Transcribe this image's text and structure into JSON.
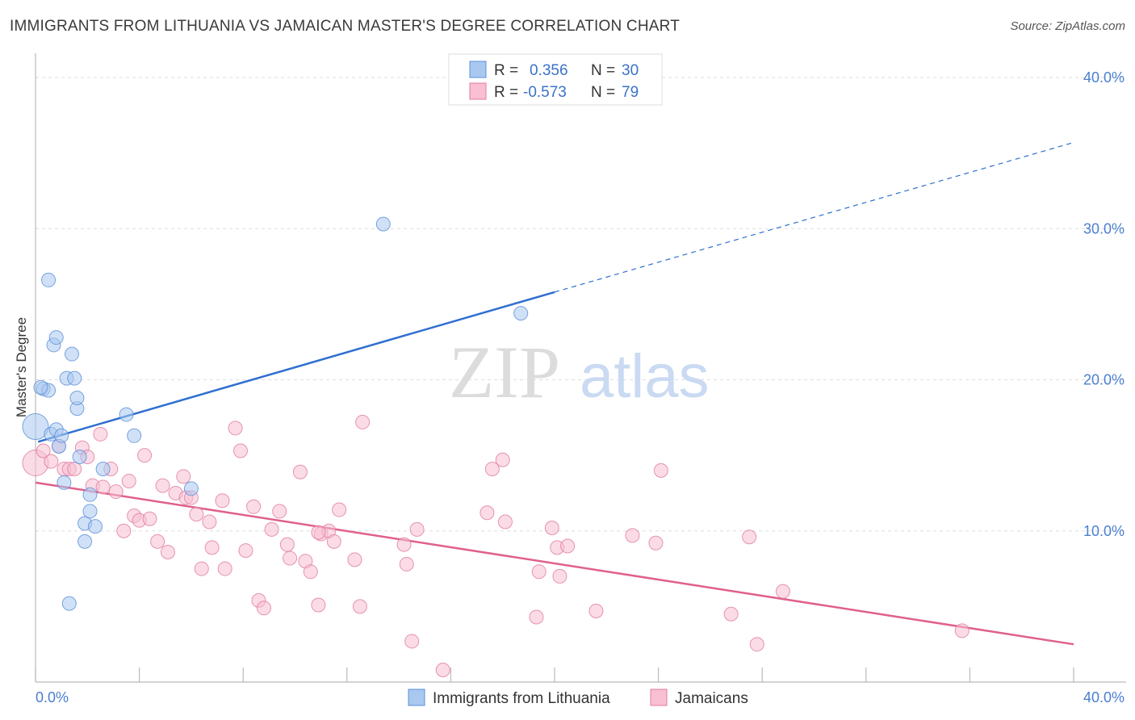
{
  "header": {
    "title": "IMMIGRANTS FROM LITHUANIA VS JAMAICAN MASTER'S DEGREE CORRELATION CHART",
    "source": "Source: ZipAtlas.com"
  },
  "watermark": {
    "zip": "ZIP",
    "atlas": "atlas"
  },
  "legend": {
    "rows": [
      {
        "r_label": "R =",
        "r_value": "0.356",
        "n_label": "N =",
        "n_value": "30",
        "color": "#a9c8f0",
        "stroke": "#5a8fd8"
      },
      {
        "r_label": "R =",
        "r_value": "-0.573",
        "n_label": "N =",
        "n_value": "79",
        "color": "#f8c0d2",
        "stroke": "#e07aa0"
      }
    ]
  },
  "chart_data": {
    "type": "scatter",
    "title": "IMMIGRANTS FROM LITHUANIA VS JAMAICAN MASTER'S DEGREE CORRELATION CHART",
    "xlabel": "",
    "ylabel": "Master's Degree",
    "xlim": [
      0,
      40
    ],
    "ylim": [
      0,
      40
    ],
    "x_tick_labels": [
      "0.0%",
      "40.0%"
    ],
    "y_tick_labels": [
      "10.0%",
      "20.0%",
      "30.0%",
      "40.0%"
    ],
    "y_ticks": [
      10,
      20,
      30,
      40
    ],
    "grid": true,
    "legend_placement": "top-center",
    "series": [
      {
        "name": "Immigrants from Lithuania",
        "color": "#a9c8f0",
        "stroke": "#5a8fd8",
        "trend_color": "#2f6fd0",
        "trend": {
          "x0": 0.1,
          "y0": 15.9,
          "x1": 20.0,
          "y1": 25.8,
          "dash_to_x": 40.0,
          "dash_to_y": 35.7
        },
        "points": [
          [
            0.0,
            16.9
          ],
          [
            0.3,
            19.4
          ],
          [
            0.5,
            19.3
          ],
          [
            0.5,
            26.6
          ],
          [
            0.6,
            16.4
          ],
          [
            0.7,
            22.3
          ],
          [
            0.8,
            22.8
          ],
          [
            0.8,
            16.7
          ],
          [
            0.9,
            15.6
          ],
          [
            1.0,
            16.3
          ],
          [
            1.1,
            13.2
          ],
          [
            1.2,
            20.1
          ],
          [
            1.4,
            21.7
          ],
          [
            1.5,
            20.1
          ],
          [
            1.6,
            18.1
          ],
          [
            1.6,
            18.8
          ],
          [
            1.7,
            14.9
          ],
          [
            1.9,
            10.5
          ],
          [
            1.9,
            9.3
          ],
          [
            2.1,
            12.4
          ],
          [
            2.1,
            11.3
          ],
          [
            2.3,
            10.3
          ],
          [
            2.6,
            14.1
          ],
          [
            3.5,
            17.7
          ],
          [
            3.8,
            16.3
          ],
          [
            6.0,
            12.8
          ],
          [
            13.4,
            30.3
          ],
          [
            18.7,
            24.4
          ],
          [
            1.3,
            5.2
          ],
          [
            0.2,
            19.5
          ]
        ]
      },
      {
        "name": "Jamaicans",
        "color": "#f8c0d2",
        "stroke": "#e07aa0",
        "trend_color": "#e0608c",
        "trend": {
          "x0": 0.0,
          "y0": 13.2,
          "x1": 40.0,
          "y1": 2.5
        },
        "points": [
          [
            0.0,
            14.5
          ],
          [
            0.3,
            15.3
          ],
          [
            0.6,
            14.6
          ],
          [
            0.9,
            15.6
          ],
          [
            1.1,
            14.1
          ],
          [
            1.3,
            14.1
          ],
          [
            1.5,
            14.1
          ],
          [
            1.8,
            15.5
          ],
          [
            2.0,
            14.9
          ],
          [
            2.2,
            13.0
          ],
          [
            2.5,
            16.4
          ],
          [
            2.6,
            12.9
          ],
          [
            2.9,
            14.1
          ],
          [
            3.1,
            12.6
          ],
          [
            3.4,
            10.0
          ],
          [
            3.6,
            13.3
          ],
          [
            3.8,
            11.0
          ],
          [
            4.0,
            10.7
          ],
          [
            4.2,
            15.0
          ],
          [
            4.4,
            10.8
          ],
          [
            4.7,
            9.3
          ],
          [
            4.9,
            13.0
          ],
          [
            5.1,
            8.6
          ],
          [
            5.4,
            12.5
          ],
          [
            5.7,
            13.6
          ],
          [
            5.8,
            12.2
          ],
          [
            6.0,
            12.2
          ],
          [
            6.2,
            11.1
          ],
          [
            6.4,
            7.5
          ],
          [
            6.7,
            10.6
          ],
          [
            6.8,
            8.9
          ],
          [
            7.2,
            12.0
          ],
          [
            7.3,
            7.5
          ],
          [
            7.7,
            16.8
          ],
          [
            7.9,
            15.3
          ],
          [
            8.1,
            8.7
          ],
          [
            8.4,
            11.6
          ],
          [
            8.6,
            5.4
          ],
          [
            8.8,
            4.9
          ],
          [
            9.1,
            10.1
          ],
          [
            9.4,
            11.3
          ],
          [
            9.7,
            9.1
          ],
          [
            9.8,
            8.2
          ],
          [
            10.2,
            13.9
          ],
          [
            10.4,
            8.0
          ],
          [
            10.6,
            7.3
          ],
          [
            10.9,
            5.1
          ],
          [
            11.0,
            9.8
          ],
          [
            11.3,
            10.0
          ],
          [
            11.5,
            9.3
          ],
          [
            11.7,
            11.4
          ],
          [
            12.3,
            8.1
          ],
          [
            12.5,
            5.0
          ],
          [
            12.6,
            17.2
          ],
          [
            14.2,
            9.1
          ],
          [
            14.3,
            7.8
          ],
          [
            14.5,
            2.7
          ],
          [
            14.7,
            10.1
          ],
          [
            15.7,
            0.8
          ],
          [
            17.4,
            11.2
          ],
          [
            17.6,
            14.1
          ],
          [
            18.0,
            14.7
          ],
          [
            18.1,
            10.6
          ],
          [
            19.3,
            4.3
          ],
          [
            19.4,
            7.3
          ],
          [
            19.9,
            10.2
          ],
          [
            20.1,
            8.9
          ],
          [
            20.2,
            7.0
          ],
          [
            20.5,
            9.0
          ],
          [
            21.6,
            4.7
          ],
          [
            23.0,
            9.7
          ],
          [
            23.9,
            9.2
          ],
          [
            24.1,
            14.0
          ],
          [
            26.8,
            4.5
          ],
          [
            27.5,
            9.6
          ],
          [
            27.8,
            2.5
          ],
          [
            28.8,
            6.0
          ],
          [
            35.7,
            3.4
          ],
          [
            10.9,
            9.9
          ]
        ]
      }
    ]
  },
  "bottom_legend": {
    "items": [
      {
        "label": "Immigrants from Lithuania",
        "color": "#a9c8f0",
        "stroke": "#5a8fd8"
      },
      {
        "label": "Jamaicans",
        "color": "#f8c0d2",
        "stroke": "#e07aa0"
      }
    ]
  }
}
